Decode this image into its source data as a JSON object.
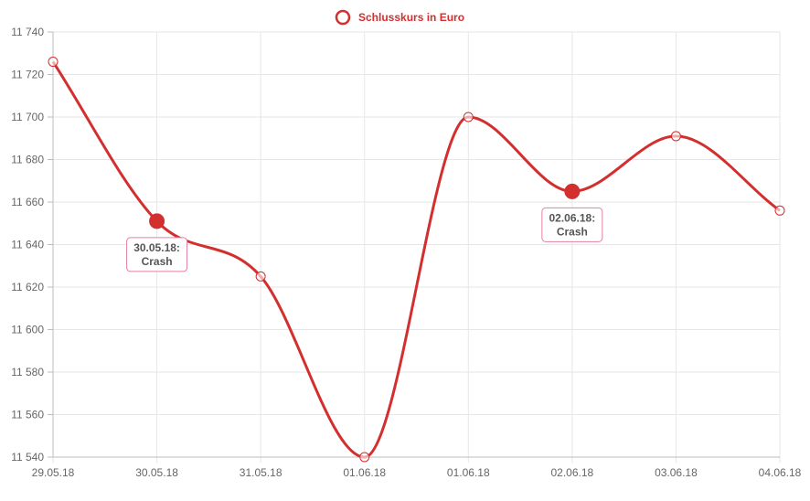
{
  "chart_data": {
    "type": "line",
    "x": [
      "29.05.18",
      "30.05.18",
      "31.05.18",
      "01.06.18",
      "01.06.18",
      "02.06.18",
      "03.06.18",
      "04.06.18"
    ],
    "series": [
      {
        "name": "Schlusskurs in Euro",
        "values": [
          11726,
          11651,
          11625,
          11540,
          11700,
          11665,
          11691,
          11656
        ],
        "color": "#d32f2f"
      }
    ],
    "ylim": [
      11540,
      11740
    ],
    "y_ticks": [
      11540,
      11560,
      11580,
      11600,
      11620,
      11640,
      11660,
      11680,
      11700,
      11720,
      11740
    ],
    "y_tick_labels": [
      "11 540",
      "11 560",
      "11 580",
      "11 600",
      "11 620",
      "11 640",
      "11 660",
      "11 680",
      "11 700",
      "11 720",
      "11 740"
    ],
    "highlighted_points": [
      1,
      5
    ],
    "annotations": [
      {
        "index": 1,
        "line1": "30.05.18:",
        "line2": "Crash"
      },
      {
        "index": 5,
        "line1": "02.06.18:",
        "line2": "Crash"
      }
    ],
    "grid": true,
    "legend": "top-center",
    "annotation_border_color": "#e57fa8"
  }
}
